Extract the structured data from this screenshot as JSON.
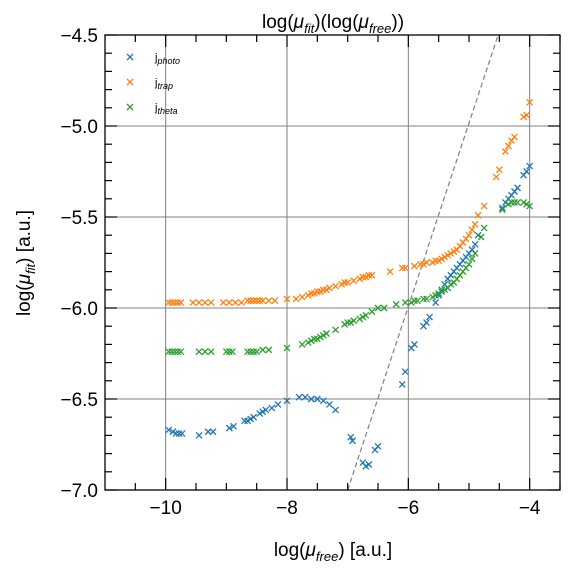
{
  "chart_data": {
    "type": "scatter",
    "title": "log(μfit)(log(μfree))",
    "title_parts": {
      "a": "log(",
      "b": "μ",
      "c": "fit",
      "d": ")(log(",
      "e": "μ",
      "f": "free",
      "g": "))"
    },
    "xlabel_parts": {
      "a": "log(",
      "b": "μ",
      "c": "free",
      "d": ") [a.u.]"
    },
    "ylabel_parts": {
      "a": "log(",
      "b": "μ",
      "c": "fit",
      "d": ") [a.u.]"
    },
    "xlim": [
      -11.0,
      -3.5
    ],
    "ylim": [
      -7.0,
      -4.5
    ],
    "x_ticks": [
      -10,
      -8,
      -6,
      -4
    ],
    "x_tick_labels": [
      "−10",
      "−8",
      "−6",
      "−4"
    ],
    "y_ticks": [
      -7.0,
      -6.5,
      -6.0,
      -5.5,
      -5.0,
      -4.5
    ],
    "y_tick_labels": [
      "−7.0",
      "−6.5",
      "−6.0",
      "−5.5",
      "−5.0",
      "−4.5"
    ],
    "grid": true,
    "legend_position": "top-left",
    "reference_line": {
      "style": "dashed",
      "color": "#808080",
      "x": [
        -7.0,
        -4.52
      ],
      "y": [
        -7.0,
        -4.5
      ]
    },
    "series": [
      {
        "name": "j_photo",
        "label_main": "j",
        "label_sub": "photo",
        "color": "#1f77b4",
        "points": [
          [
            -9.95,
            -6.67
          ],
          [
            -9.88,
            -6.68
          ],
          [
            -9.83,
            -6.69
          ],
          [
            -9.78,
            -6.69
          ],
          [
            -9.73,
            -6.69
          ],
          [
            -9.45,
            -6.7
          ],
          [
            -9.3,
            -6.68
          ],
          [
            -9.22,
            -6.68
          ],
          [
            -8.95,
            -6.66
          ],
          [
            -8.88,
            -6.65
          ],
          [
            -8.7,
            -6.62
          ],
          [
            -8.65,
            -6.62
          ],
          [
            -8.6,
            -6.61
          ],
          [
            -8.55,
            -6.6
          ],
          [
            -8.45,
            -6.58
          ],
          [
            -8.4,
            -6.57
          ],
          [
            -8.35,
            -6.56
          ],
          [
            -8.25,
            -6.55
          ],
          [
            -8.15,
            -6.53
          ],
          [
            -8.0,
            -6.51
          ],
          [
            -7.8,
            -6.49
          ],
          [
            -7.7,
            -6.49
          ],
          [
            -7.6,
            -6.5
          ],
          [
            -7.5,
            -6.5
          ],
          [
            -7.4,
            -6.51
          ],
          [
            -7.3,
            -6.53
          ],
          [
            -7.2,
            -6.56
          ],
          [
            -6.95,
            -6.71
          ],
          [
            -6.92,
            -6.73
          ],
          [
            -6.75,
            -6.85
          ],
          [
            -6.7,
            -6.87
          ],
          [
            -6.65,
            -6.86
          ],
          [
            -6.55,
            -6.78
          ],
          [
            -6.5,
            -6.76
          ],
          [
            -6.1,
            -6.42
          ],
          [
            -6.05,
            -6.35
          ],
          [
            -5.95,
            -6.22
          ],
          [
            -5.9,
            -6.2
          ],
          [
            -5.75,
            -6.1
          ],
          [
            -5.7,
            -6.08
          ],
          [
            -5.65,
            -6.05
          ],
          [
            -5.55,
            -5.97
          ],
          [
            -5.5,
            -5.93
          ],
          [
            -5.45,
            -5.9
          ],
          [
            -5.4,
            -5.87
          ],
          [
            -5.35,
            -5.84
          ],
          [
            -5.3,
            -5.82
          ],
          [
            -5.25,
            -5.8
          ],
          [
            -5.2,
            -5.78
          ],
          [
            -5.15,
            -5.76
          ],
          [
            -5.1,
            -5.74
          ],
          [
            -5.05,
            -5.72
          ],
          [
            -5.0,
            -5.7
          ],
          [
            -4.95,
            -5.68
          ],
          [
            -4.9,
            -5.65
          ],
          [
            -4.85,
            -5.6
          ],
          [
            -4.45,
            -5.45
          ],
          [
            -4.4,
            -5.42
          ],
          [
            -4.35,
            -5.4
          ],
          [
            -4.3,
            -5.38
          ],
          [
            -4.25,
            -5.36
          ],
          [
            -4.2,
            -5.34
          ],
          [
            -4.1,
            -5.27
          ],
          [
            -4.05,
            -5.25
          ],
          [
            -4.0,
            -5.22
          ]
        ]
      },
      {
        "name": "j_trap",
        "label_main": "j",
        "label_sub": "trap",
        "color": "#ff7f0e",
        "points": [
          [
            -9.95,
            -5.97
          ],
          [
            -9.9,
            -5.97
          ],
          [
            -9.85,
            -5.97
          ],
          [
            -9.8,
            -5.97
          ],
          [
            -9.75,
            -5.97
          ],
          [
            -9.55,
            -5.97
          ],
          [
            -9.45,
            -5.97
          ],
          [
            -9.35,
            -5.97
          ],
          [
            -9.25,
            -5.97
          ],
          [
            -9.05,
            -5.97
          ],
          [
            -8.95,
            -5.97
          ],
          [
            -8.85,
            -5.97
          ],
          [
            -8.75,
            -5.97
          ],
          [
            -8.65,
            -5.96
          ],
          [
            -8.6,
            -5.96
          ],
          [
            -8.55,
            -5.96
          ],
          [
            -8.5,
            -5.96
          ],
          [
            -8.45,
            -5.96
          ],
          [
            -8.4,
            -5.96
          ],
          [
            -8.3,
            -5.96
          ],
          [
            -8.2,
            -5.96
          ],
          [
            -8.0,
            -5.95
          ],
          [
            -7.85,
            -5.95
          ],
          [
            -7.75,
            -5.94
          ],
          [
            -7.65,
            -5.93
          ],
          [
            -7.6,
            -5.92
          ],
          [
            -7.55,
            -5.92
          ],
          [
            -7.5,
            -5.91
          ],
          [
            -7.45,
            -5.91
          ],
          [
            -7.4,
            -5.9
          ],
          [
            -7.35,
            -5.9
          ],
          [
            -7.3,
            -5.89
          ],
          [
            -7.2,
            -5.88
          ],
          [
            -7.1,
            -5.87
          ],
          [
            -7.05,
            -5.86
          ],
          [
            -7.0,
            -5.86
          ],
          [
            -6.9,
            -5.85
          ],
          [
            -6.8,
            -5.84
          ],
          [
            -6.75,
            -5.83
          ],
          [
            -6.7,
            -5.83
          ],
          [
            -6.65,
            -5.82
          ],
          [
            -6.6,
            -5.82
          ],
          [
            -6.3,
            -5.8
          ],
          [
            -6.1,
            -5.78
          ],
          [
            -6.05,
            -5.78
          ],
          [
            -5.9,
            -5.77
          ],
          [
            -5.8,
            -5.76
          ],
          [
            -5.75,
            -5.76
          ],
          [
            -5.7,
            -5.75
          ],
          [
            -5.6,
            -5.75
          ],
          [
            -5.55,
            -5.74
          ],
          [
            -5.5,
            -5.74
          ],
          [
            -5.45,
            -5.73
          ],
          [
            -5.4,
            -5.72
          ],
          [
            -5.35,
            -5.71
          ],
          [
            -5.3,
            -5.7
          ],
          [
            -5.25,
            -5.69
          ],
          [
            -5.2,
            -5.68
          ],
          [
            -5.15,
            -5.66
          ],
          [
            -5.1,
            -5.64
          ],
          [
            -5.05,
            -5.62
          ],
          [
            -5.0,
            -5.6
          ],
          [
            -4.95,
            -5.57
          ],
          [
            -4.9,
            -5.54
          ],
          [
            -4.85,
            -5.49
          ],
          [
            -4.75,
            -5.44
          ],
          [
            -4.55,
            -5.28
          ],
          [
            -4.5,
            -5.24
          ],
          [
            -4.4,
            -5.14
          ],
          [
            -4.35,
            -5.11
          ],
          [
            -4.3,
            -5.08
          ],
          [
            -4.25,
            -5.06
          ],
          [
            -4.1,
            -4.95
          ],
          [
            -4.05,
            -4.94
          ],
          [
            -4.0,
            -4.87
          ]
        ]
      },
      {
        "name": "j_theta",
        "label_main": "j",
        "label_sub": "theta",
        "color": "#2ca02c",
        "points": [
          [
            -9.95,
            -6.24
          ],
          [
            -9.9,
            -6.24
          ],
          [
            -9.85,
            -6.24
          ],
          [
            -9.8,
            -6.24
          ],
          [
            -9.75,
            -6.24
          ],
          [
            -9.45,
            -6.24
          ],
          [
            -9.35,
            -6.24
          ],
          [
            -9.25,
            -6.24
          ],
          [
            -9.0,
            -6.24
          ],
          [
            -8.95,
            -6.24
          ],
          [
            -8.9,
            -6.24
          ],
          [
            -8.65,
            -6.24
          ],
          [
            -8.6,
            -6.24
          ],
          [
            -8.55,
            -6.24
          ],
          [
            -8.5,
            -6.24
          ],
          [
            -8.4,
            -6.23
          ],
          [
            -8.3,
            -6.23
          ],
          [
            -8.0,
            -6.22
          ],
          [
            -7.75,
            -6.2
          ],
          [
            -7.65,
            -6.19
          ],
          [
            -7.6,
            -6.18
          ],
          [
            -7.55,
            -6.17
          ],
          [
            -7.5,
            -6.17
          ],
          [
            -7.45,
            -6.16
          ],
          [
            -7.4,
            -6.15
          ],
          [
            -7.35,
            -6.14
          ],
          [
            -7.2,
            -6.12
          ],
          [
            -7.05,
            -6.09
          ],
          [
            -7.0,
            -6.08
          ],
          [
            -6.95,
            -6.08
          ],
          [
            -6.9,
            -6.07
          ],
          [
            -6.8,
            -6.06
          ],
          [
            -6.75,
            -6.05
          ],
          [
            -6.7,
            -6.04
          ],
          [
            -6.6,
            -6.02
          ],
          [
            -6.5,
            -6.0
          ],
          [
            -6.4,
            -6.0
          ],
          [
            -6.2,
            -5.98
          ],
          [
            -6.05,
            -5.97
          ],
          [
            -5.95,
            -5.97
          ],
          [
            -5.9,
            -5.96
          ],
          [
            -5.85,
            -5.96
          ],
          [
            -5.75,
            -5.95
          ],
          [
            -5.7,
            -5.95
          ],
          [
            -5.6,
            -5.94
          ],
          [
            -5.55,
            -5.93
          ],
          [
            -5.5,
            -5.92
          ],
          [
            -5.45,
            -5.91
          ],
          [
            -5.4,
            -5.9
          ],
          [
            -5.35,
            -5.89
          ],
          [
            -5.3,
            -5.87
          ],
          [
            -5.25,
            -5.86
          ],
          [
            -5.2,
            -5.84
          ],
          [
            -5.15,
            -5.82
          ],
          [
            -5.1,
            -5.8
          ],
          [
            -5.05,
            -5.78
          ],
          [
            -5.0,
            -5.76
          ],
          [
            -4.95,
            -5.73
          ],
          [
            -4.9,
            -5.7
          ],
          [
            -4.8,
            -5.61
          ],
          [
            -4.75,
            -5.56
          ],
          [
            -4.45,
            -5.46
          ],
          [
            -4.35,
            -5.43
          ],
          [
            -4.3,
            -5.42
          ],
          [
            -4.25,
            -5.42
          ],
          [
            -4.2,
            -5.42
          ],
          [
            -4.1,
            -5.42
          ],
          [
            -4.05,
            -5.43
          ],
          [
            -4.0,
            -5.44
          ]
        ]
      }
    ]
  }
}
